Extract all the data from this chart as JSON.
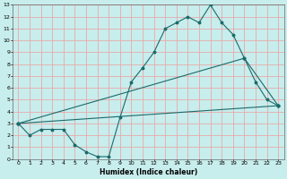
{
  "title": "",
  "xlabel": "Humidex (Indice chaleur)",
  "bg_color": "#c8eded",
  "grid_color": "#e8aaaa",
  "line_color": "#1a6b6b",
  "xlim": [
    -0.5,
    23.5
  ],
  "ylim": [
    0,
    13
  ],
  "xticks": [
    0,
    1,
    2,
    3,
    4,
    5,
    6,
    7,
    8,
    9,
    10,
    11,
    12,
    13,
    14,
    15,
    16,
    17,
    18,
    19,
    20,
    21,
    22,
    23
  ],
  "yticks": [
    0,
    1,
    2,
    3,
    4,
    5,
    6,
    7,
    8,
    9,
    10,
    11,
    12,
    13
  ],
  "line1_x": [
    0,
    1,
    2,
    3,
    4,
    5,
    6,
    7,
    8,
    9,
    10,
    11,
    12,
    13,
    14,
    15,
    16,
    17,
    18,
    19,
    20,
    21,
    22,
    23
  ],
  "line1_y": [
    3.0,
    2.0,
    2.5,
    2.5,
    2.5,
    1.2,
    0.6,
    0.2,
    0.2,
    3.5,
    6.5,
    7.7,
    9.0,
    11.0,
    11.5,
    12.0,
    11.5,
    13.0,
    11.5,
    10.5,
    8.5,
    6.5,
    5.0,
    4.5
  ],
  "line2_x": [
    0,
    20,
    23
  ],
  "line2_y": [
    3.0,
    8.5,
    4.5
  ],
  "line3_x": [
    0,
    23
  ],
  "line3_y": [
    3.0,
    4.5
  ]
}
